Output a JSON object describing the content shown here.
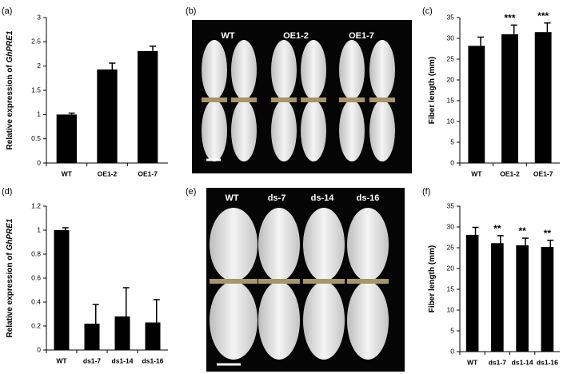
{
  "chart_data": [
    {
      "type": "bar",
      "panel_label": "(a)",
      "ylabel_parts": [
        "Relative expression of ",
        "GhPRE1"
      ],
      "categories": [
        "WT",
        "OE1-2",
        "OE1-7"
      ],
      "values": [
        1.0,
        1.93,
        2.31
      ],
      "errors": [
        0.03,
        0.13,
        0.1
      ],
      "color": "#000000",
      "ylim": [
        0,
        3
      ],
      "yticks": [
        0,
        0.5,
        1,
        1.5,
        2,
        2.5,
        3
      ]
    },
    {
      "type": "bar",
      "panel_label": "(c)",
      "ylabel_parts": [
        "Fiber length (mm)"
      ],
      "categories": [
        "WT",
        "OE1-2",
        "OE1-7"
      ],
      "values": [
        28.2,
        31.0,
        31.5
      ],
      "errors": [
        2.1,
        2.2,
        2.2
      ],
      "annotations": [
        null,
        "***",
        "***"
      ],
      "color": "#000000",
      "ylim": [
        0,
        35
      ],
      "yticks": [
        0,
        5,
        10,
        15,
        20,
        25,
        30,
        35
      ]
    },
    {
      "type": "bar",
      "panel_label": "(d)",
      "ylabel_parts": [
        "Relative expression of ",
        "GhPRE1"
      ],
      "categories": [
        "WT",
        "ds1-7",
        "ds1-14",
        "ds1-16"
      ],
      "values": [
        1.0,
        0.22,
        0.28,
        0.23
      ],
      "errors": [
        0.02,
        0.16,
        0.24,
        0.19
      ],
      "color": "#000000",
      "ylim": [
        0,
        1.2
      ],
      "yticks": [
        0,
        0.2,
        0.4,
        0.6,
        0.8,
        1,
        1.2
      ]
    },
    {
      "type": "bar",
      "panel_label": "(f)",
      "ylabel_parts": [
        "Fiber length (mm)"
      ],
      "categories": [
        "WT",
        "ds1-7",
        "ds1-14",
        "ds1-16"
      ],
      "values": [
        28.1,
        26.1,
        25.6,
        25.2
      ],
      "errors": [
        1.8,
        1.8,
        1.7,
        1.6
      ],
      "annotations": [
        null,
        "**",
        "**",
        "**"
      ],
      "color": "#000000",
      "ylim": [
        0,
        35
      ],
      "yticks": [
        0,
        5,
        10,
        15,
        20,
        25,
        30,
        35
      ]
    }
  ],
  "photos": [
    {
      "panel_label": "(b)",
      "captions": [
        "WT",
        "OE1-2",
        "OE1-7"
      ]
    },
    {
      "panel_label": "(e)",
      "captions": [
        "WT",
        "ds-7",
        "ds-14",
        "ds-16"
      ]
    }
  ]
}
